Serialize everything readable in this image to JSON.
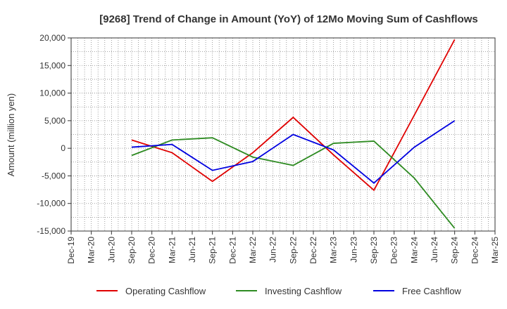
{
  "chart_data": {
    "type": "line",
    "title": "[9268]  Trend of Change in Amount (YoY) of 12Mo Moving Sum of Cashflows",
    "xlabel": "",
    "ylabel": "Amount (million yen)",
    "ylim": [
      -15000,
      20000
    ],
    "yticks": [
      20000,
      15000,
      10000,
      5000,
      0,
      -5000,
      -10000,
      -15000
    ],
    "ytick_labels": [
      "20,000",
      "15,000",
      "10,000",
      "5,000",
      "0",
      "-5,000",
      "-10,000",
      "-15,000"
    ],
    "categories": [
      "Dec-19",
      "Mar-20",
      "Jun-20",
      "Sep-20",
      "Dec-20",
      "Mar-21",
      "Jun-21",
      "Sep-21",
      "Dec-21",
      "Mar-22",
      "Jun-22",
      "Sep-22",
      "Dec-22",
      "Mar-23",
      "Jun-23",
      "Sep-23",
      "Dec-23",
      "Mar-24",
      "Jun-24",
      "Sep-24",
      "Dec-24",
      "Mar-25"
    ],
    "grid": true,
    "legend_position": "bottom",
    "series": [
      {
        "name": "Operating Cashflow",
        "color": "#e00000",
        "points": [
          {
            "x": "Sep-20",
            "y": 1500
          },
          {
            "x": "Mar-21",
            "y": -800
          },
          {
            "x": "Sep-21",
            "y": -6000
          },
          {
            "x": "Mar-22",
            "y": -800
          },
          {
            "x": "Sep-22",
            "y": 5600
          },
          {
            "x": "Mar-23",
            "y": -1200
          },
          {
            "x": "Sep-23",
            "y": -7600
          },
          {
            "x": "Mar-24",
            "y": 6000
          },
          {
            "x": "Sep-24",
            "y": 19700
          }
        ]
      },
      {
        "name": "Investing Cashflow",
        "color": "#2e8b22",
        "points": [
          {
            "x": "Sep-20",
            "y": -1300
          },
          {
            "x": "Mar-21",
            "y": 1500
          },
          {
            "x": "Sep-21",
            "y": 1900
          },
          {
            "x": "Mar-22",
            "y": -1600
          },
          {
            "x": "Sep-22",
            "y": -3100
          },
          {
            "x": "Mar-23",
            "y": 900
          },
          {
            "x": "Sep-23",
            "y": 1300
          },
          {
            "x": "Mar-24",
            "y": -5400
          },
          {
            "x": "Sep-24",
            "y": -14500
          }
        ]
      },
      {
        "name": "Free Cashflow",
        "color": "#0000e0",
        "points": [
          {
            "x": "Sep-20",
            "y": 200
          },
          {
            "x": "Mar-21",
            "y": 700
          },
          {
            "x": "Sep-21",
            "y": -4000
          },
          {
            "x": "Mar-22",
            "y": -2400
          },
          {
            "x": "Sep-22",
            "y": 2500
          },
          {
            "x": "Mar-23",
            "y": -300
          },
          {
            "x": "Sep-23",
            "y": -6300
          },
          {
            "x": "Mar-24",
            "y": 200
          },
          {
            "x": "Sep-24",
            "y": 5000
          }
        ]
      }
    ]
  }
}
